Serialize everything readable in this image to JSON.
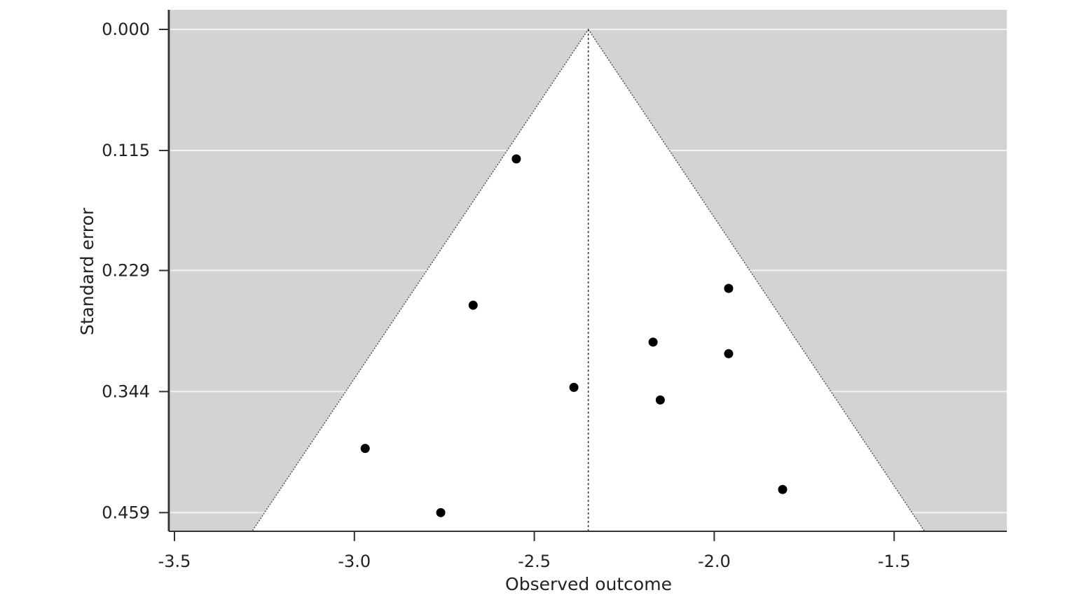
{
  "chart_data": {
    "type": "scatter",
    "subtype": "funnel-plot",
    "title": "",
    "xlabel": "Observed outcome",
    "ylabel": "Standard error",
    "xlim": [
      -3.52,
      -1.18
    ],
    "ylim": [
      0.0,
      0.477
    ],
    "y_inverted": true,
    "x_ticks": [
      -3.5,
      -3.0,
      -2.5,
      -2.0,
      -1.5
    ],
    "x_tick_labels": [
      "-3.5",
      "-3.0",
      "-2.5",
      "-2.0",
      "-1.5"
    ],
    "y_ticks": [
      0.0,
      0.115,
      0.229,
      0.344,
      0.459
    ],
    "y_tick_labels": [
      "0.000",
      "0.115",
      "0.229",
      "0.344",
      "0.459"
    ],
    "horizontal_grid": true,
    "summary_estimate": -2.35,
    "funnel_multiplier": 1.96,
    "colors": {
      "background_region": "#d3d3d3",
      "funnel_region": "#ffffff",
      "gridline": "#f2f2f2",
      "points": "#000000",
      "axis": "#333333"
    },
    "points": [
      {
        "x": -2.55,
        "y": 0.123
      },
      {
        "x": -2.67,
        "y": 0.262
      },
      {
        "x": -1.96,
        "y": 0.246
      },
      {
        "x": -2.17,
        "y": 0.297
      },
      {
        "x": -1.96,
        "y": 0.308
      },
      {
        "x": -2.39,
        "y": 0.34
      },
      {
        "x": -2.15,
        "y": 0.352
      },
      {
        "x": -2.97,
        "y": 0.398
      },
      {
        "x": -1.81,
        "y": 0.437
      },
      {
        "x": -2.76,
        "y": 0.459
      }
    ]
  }
}
